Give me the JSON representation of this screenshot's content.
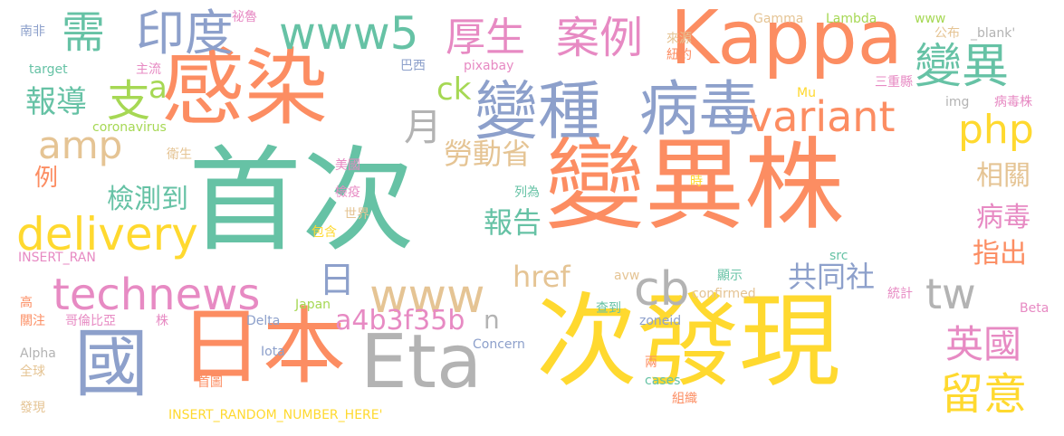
{
  "palette": {
    "orange": "#fc8d62",
    "green": "#66c2a5",
    "blue": "#8da0cb",
    "pink": "#e78ac3",
    "lime": "#a6d854",
    "yellow": "#ffd92f",
    "tan": "#e5c494",
    "gray": "#b3b3b3"
  },
  "words": [
    {
      "text": "變異株",
      "color": "orange"
    },
    {
      "text": "首次",
      "color": "green"
    },
    {
      "text": "感染",
      "color": "orange"
    },
    {
      "text": "次發現",
      "color": "yellow"
    },
    {
      "text": "Kappa",
      "color": "orange"
    },
    {
      "text": "日本",
      "color": "orange"
    },
    {
      "text": "Eta",
      "color": "gray"
    },
    {
      "text": "國",
      "color": "blue"
    },
    {
      "text": "變種",
      "color": "blue"
    },
    {
      "text": "病毒",
      "color": "blue"
    },
    {
      "text": "www5",
      "color": "green"
    },
    {
      "text": "印度",
      "color": "blue"
    },
    {
      "text": "technews",
      "color": "pink"
    },
    {
      "text": "delivery",
      "color": "yellow"
    },
    {
      "text": "variant",
      "color": "orange"
    },
    {
      "text": "變異",
      "color": "green"
    },
    {
      "text": "案例",
      "color": "pink"
    },
    {
      "text": "厚生",
      "color": "pink"
    },
    {
      "text": "需",
      "color": "green"
    },
    {
      "text": "amp",
      "color": "tan"
    },
    {
      "text": "www",
      "color": "tan"
    },
    {
      "text": "cb",
      "color": "gray"
    },
    {
      "text": "tw",
      "color": "gray"
    },
    {
      "text": "php",
      "color": "yellow"
    },
    {
      "text": "英國",
      "color": "pink"
    },
    {
      "text": "留意",
      "color": "yellow"
    },
    {
      "text": "月",
      "color": "gray"
    },
    {
      "text": "日",
      "color": "blue"
    },
    {
      "text": "支",
      "color": "lime"
    },
    {
      "text": "報導",
      "color": "green"
    },
    {
      "text": "a",
      "color": "lime"
    },
    {
      "text": "勞動省",
      "color": "tan"
    },
    {
      "text": "檢測到",
      "color": "green"
    },
    {
      "text": "報告",
      "color": "green"
    },
    {
      "text": "共同社",
      "color": "blue"
    },
    {
      "text": "href",
      "color": "tan"
    },
    {
      "text": "a4b3f35b",
      "color": "pink"
    },
    {
      "text": "n",
      "color": "gray"
    },
    {
      "text": "ck",
      "color": "lime"
    },
    {
      "text": "相關",
      "color": "tan"
    },
    {
      "text": "病毒",
      "color": "pink"
    },
    {
      "text": "指出",
      "color": "orange"
    },
    {
      "text": "例",
      "color": "orange"
    },
    {
      "text": "www",
      "color": "lime"
    },
    {
      "text": "Gamma",
      "color": "tan"
    },
    {
      "text": "Lambda",
      "color": "lime"
    },
    {
      "text": "來源",
      "color": "tan"
    },
    {
      "text": "紐約",
      "color": "orange"
    },
    {
      "text": "公布",
      "color": "tan"
    },
    {
      "text": "_blank'",
      "color": "gray"
    },
    {
      "text": "祕魯",
      "color": "pink"
    },
    {
      "text": "南非",
      "color": "blue"
    },
    {
      "text": "target",
      "color": "green"
    },
    {
      "text": "主流",
      "color": "pink"
    },
    {
      "text": "巴西",
      "color": "blue"
    },
    {
      "text": "pixabay",
      "color": "pink"
    },
    {
      "text": "三重縣",
      "color": "pink"
    },
    {
      "text": "Mu",
      "color": "yellow"
    },
    {
      "text": "img",
      "color": "gray"
    },
    {
      "text": "病毒株",
      "color": "pink"
    },
    {
      "text": "coronavirus",
      "color": "lime"
    },
    {
      "text": "衛生",
      "color": "tan"
    },
    {
      "text": "美國",
      "color": "pink"
    },
    {
      "text": "檢疫",
      "color": "pink"
    },
    {
      "text": "世界",
      "color": "tan"
    },
    {
      "text": "包含",
      "color": "yellow"
    },
    {
      "text": "列為",
      "color": "green"
    },
    {
      "text": "時",
      "color": "yellow"
    },
    {
      "text": "INSERT_RAN",
      "color": "pink"
    },
    {
      "text": "avw",
      "color": "tan"
    },
    {
      "text": "src",
      "color": "green"
    },
    {
      "text": "顯示",
      "color": "green"
    },
    {
      "text": "confirmed",
      "color": "tan"
    },
    {
      "text": "統計",
      "color": "pink"
    },
    {
      "text": "高",
      "color": "orange"
    },
    {
      "text": "Japan",
      "color": "lime"
    },
    {
      "text": "關注",
      "color": "orange"
    },
    {
      "text": "哥倫比亞",
      "color": "pink"
    },
    {
      "text": "株",
      "color": "pink"
    },
    {
      "text": "Delta",
      "color": "blue"
    },
    {
      "text": "查到",
      "color": "green"
    },
    {
      "text": "zoneid",
      "color": "blue"
    },
    {
      "text": "Beta",
      "color": "pink"
    },
    {
      "text": "Alpha",
      "color": "gray"
    },
    {
      "text": "Iota",
      "color": "blue"
    },
    {
      "text": "Concern",
      "color": "blue"
    },
    {
      "text": "全球",
      "color": "tan"
    },
    {
      "text": "首圖",
      "color": "orange"
    },
    {
      "text": "兩",
      "color": "orange"
    },
    {
      "text": "cases",
      "color": "green"
    },
    {
      "text": "組織",
      "color": "orange"
    },
    {
      "text": "發現",
      "color": "tan"
    },
    {
      "text": "INSERT_RANDOM_NUMBER_HERE'",
      "color": "yellow"
    }
  ]
}
